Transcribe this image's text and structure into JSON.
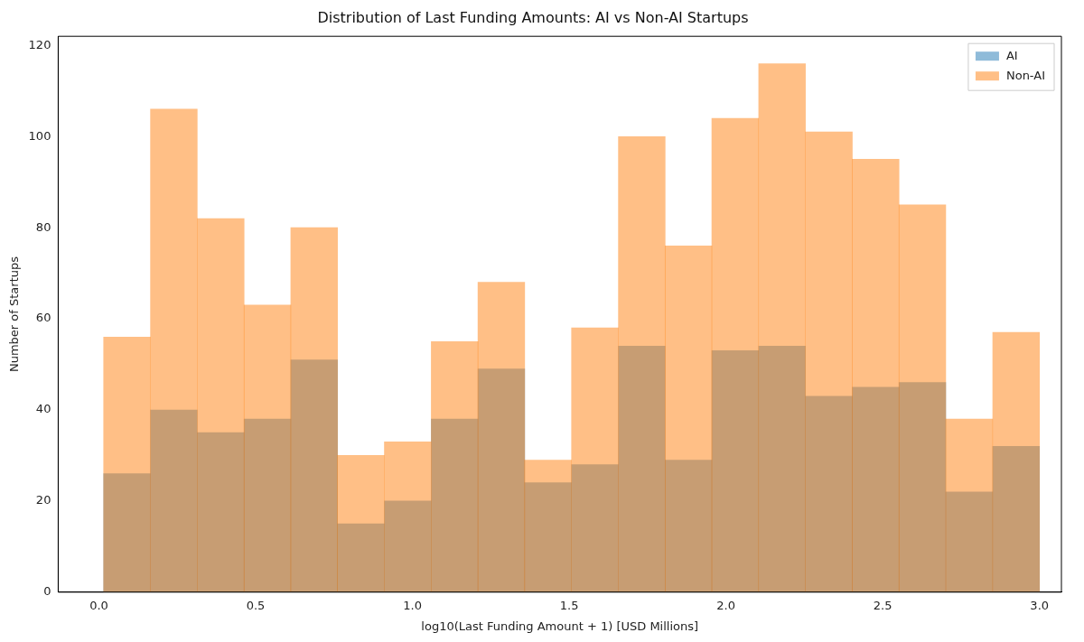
{
  "chart_data": {
    "type": "histogram",
    "title": "Distribution of Last Funding Amounts: AI vs Non-AI Startups",
    "xlabel": "log10(Last Funding Amount + 1) [USD Millions]",
    "ylabel": "Number of Startups",
    "bins": [
      0.015,
      0.164,
      0.314,
      0.463,
      0.612,
      0.761,
      0.91,
      1.06,
      1.209,
      1.358,
      1.507,
      1.657,
      1.806,
      1.955,
      2.104,
      2.254,
      2.403,
      2.552,
      2.701,
      2.851,
      3.0
    ],
    "series": [
      {
        "name": "AI",
        "color": "#1f77b4",
        "values": [
          26,
          40,
          35,
          38,
          51,
          15,
          20,
          38,
          49,
          24,
          28,
          54,
          29,
          53,
          54,
          43,
          45,
          46,
          22,
          32
        ]
      },
      {
        "name": "Non-AI",
        "color": "#ff7f0e",
        "values": [
          56,
          106,
          82,
          63,
          80,
          30,
          33,
          55,
          68,
          29,
          58,
          100,
          76,
          104,
          116,
          101,
          95,
          85,
          38,
          57
        ]
      }
    ],
    "xlim": [
      -0.13,
      3.07
    ],
    "ylim": [
      0,
      122
    ],
    "xticks": [
      {
        "value": 0,
        "label": "0.0"
      },
      0.5,
      {
        "value": 1,
        "label": "1.0"
      },
      1.5,
      {
        "value": 2,
        "label": "2.0"
      },
      2.5,
      {
        "value": 3,
        "label": "3.0"
      }
    ],
    "yticks": [
      0,
      20,
      40,
      60,
      80,
      100,
      120
    ],
    "grid": false,
    "legend": "top right"
  }
}
